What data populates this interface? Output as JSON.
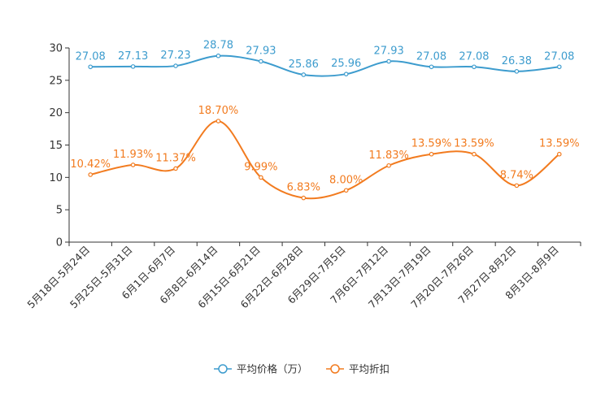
{
  "chart_data": {
    "type": "line",
    "title": "",
    "xlabel": "",
    "ylabel": "",
    "ylim": [
      0,
      30
    ],
    "yticks": [
      0,
      5,
      10,
      15,
      20,
      25,
      30
    ],
    "grid": false,
    "smooth": true,
    "legend_position": "bottom-center",
    "categories": [
      "5月18日-5月24日",
      "5月25日-5月31日",
      "6月1日-6月7日",
      "6月8日-6月14日",
      "6月15日-6月21日",
      "6月22日-6月28日",
      "6月29日-7月5日",
      "7月6日-7月12日",
      "7月13日-7月19日",
      "7月20日-7月26日",
      "7月27日-8月2日",
      "8月3日-8月9日"
    ],
    "series": [
      {
        "name": "平均价格（万）",
        "color": "#3d9cce",
        "values": [
          27.08,
          27.13,
          27.23,
          28.78,
          27.93,
          25.86,
          25.96,
          27.93,
          27.08,
          27.08,
          26.38,
          27.08
        ],
        "labels": [
          "27.08",
          "27.13",
          "27.23",
          "28.78",
          "27.93",
          "25.86",
          "25.96",
          "27.93",
          "27.08",
          "27.08",
          "26.38",
          "27.08"
        ]
      },
      {
        "name": "平均折扣",
        "color": "#f27b1f",
        "values": [
          10.42,
          11.93,
          11.37,
          18.7,
          9.99,
          6.83,
          8.0,
          11.83,
          13.59,
          13.59,
          8.74,
          13.59
        ],
        "labels": [
          "10.42%",
          "11.93%",
          "11.37%",
          "18.70%",
          "9.99%",
          "6.83%",
          "8.00%",
          "11.83%",
          "13.59%",
          "13.59%",
          "8.74%",
          "13.59%"
        ]
      }
    ]
  }
}
